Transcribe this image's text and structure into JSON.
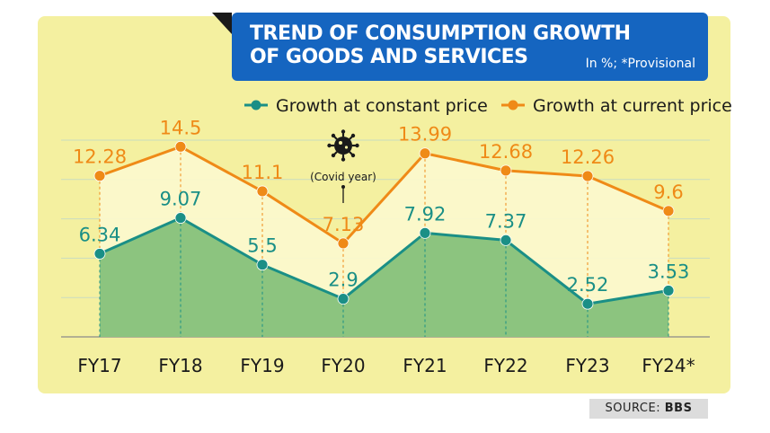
{
  "header": {
    "title_line1": "TREND OF CONSUMPTION GROWTH",
    "title_line2": "OF GOODS AND SERVICES",
    "note": "In %; *Provisional"
  },
  "source": {
    "label": "SOURCE:",
    "name": "BBS"
  },
  "annotation": {
    "text": "(Covid year)",
    "icon": "virus-icon"
  },
  "colors": {
    "background": "#f4f0a0",
    "constant": "#1a8f86",
    "current": "#ef8a17",
    "fill_constant": "#8cc47f",
    "fill_band": "#fbf8cc",
    "title_bg": "#1565c0"
  },
  "chart_data": {
    "type": "line",
    "title": "TREND OF CONSUMPTION GROWTH OF GOODS AND SERVICES",
    "unit_note": "In %; *Provisional",
    "categories": [
      "FY17",
      "FY18",
      "FY19",
      "FY20",
      "FY21",
      "FY22",
      "FY23",
      "FY24*"
    ],
    "series": [
      {
        "name": "Growth at constant price",
        "values": [
          6.34,
          9.07,
          5.5,
          2.9,
          7.92,
          7.37,
          2.52,
          3.53
        ],
        "labels": [
          "6.34",
          "9.07",
          "5.5",
          "2.9",
          "7.92",
          "7.37",
          "2.52",
          "3.53"
        ]
      },
      {
        "name": "Growth at current price",
        "values": [
          12.28,
          14.5,
          11.1,
          7.13,
          13.99,
          12.68,
          12.26,
          9.6
        ],
        "labels": [
          "12.28",
          "14.5",
          "11.1",
          "7.13",
          "13.99",
          "12.68",
          "12.26",
          "9.6"
        ]
      }
    ],
    "ylim": [
      0,
      16
    ],
    "grid": true,
    "legend": "top"
  }
}
